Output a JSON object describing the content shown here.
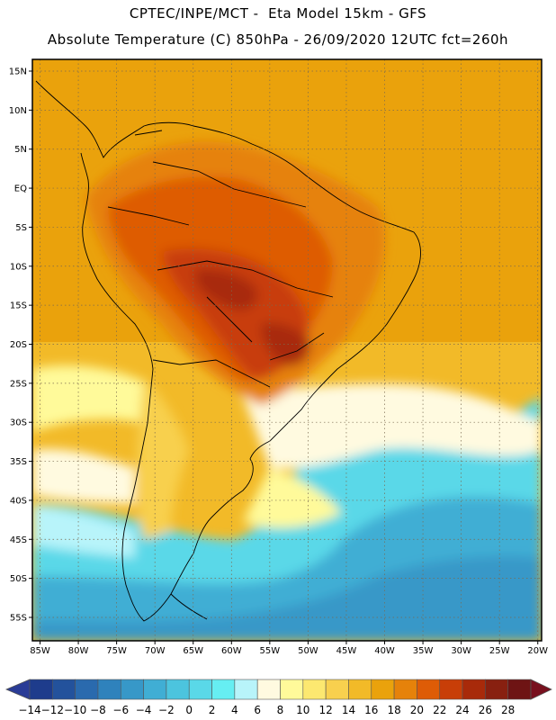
{
  "title": {
    "line1": "CPTEC/INPE/MCT -  Eta Model 15km - GFS",
    "line2": "Absolute Temperature (C) 850hPa - 26/09/2020 12UTC fct=260h"
  },
  "map": {
    "lat_labels": [
      "15N",
      "10N",
      "5N",
      "EQ",
      "5S",
      "10S",
      "15S",
      "20S",
      "25S",
      "30S",
      "35S",
      "40S",
      "45S",
      "50S",
      "55S"
    ],
    "lon_labels": [
      "85W",
      "80W",
      "75W",
      "70W",
      "65W",
      "60W",
      "55W",
      "50W",
      "45W",
      "40W",
      "35W",
      "30W",
      "25W",
      "20W"
    ],
    "lat_values": [
      15,
      10,
      5,
      0,
      -5,
      -10,
      -15,
      -20,
      -25,
      -30,
      -35,
      -40,
      -45,
      -50,
      -55
    ],
    "lon_values": [
      -85,
      -80,
      -75,
      -70,
      -65,
      -60,
      -55,
      -50,
      -45,
      -40,
      -35,
      -30,
      -25,
      -20
    ],
    "lon_range": [
      -86,
      -19.5
    ],
    "lat_range": [
      -58,
      16.5
    ]
  },
  "colorbar": {
    "labels": [
      "-14",
      "-12",
      "-10",
      "-8",
      "-6",
      "-4",
      "-2",
      "0",
      "2",
      "4",
      "6",
      "8",
      "10",
      "12",
      "14",
      "16",
      "18",
      "20",
      "22",
      "24",
      "26",
      "28"
    ],
    "colors": [
      "#1e3c8c",
      "#23529c",
      "#2a6aae",
      "#2f82bc",
      "#3798c8",
      "#40aed4",
      "#4cc4de",
      "#5ad8e8",
      "#66eef2",
      "#b8f4fa",
      "#fffae0",
      "#fffa9a",
      "#fce870",
      "#f8d04e",
      "#f2ba28",
      "#eaa20c",
      "#e6820a",
      "#de5c06",
      "#c83e08",
      "#a82a0a",
      "#882010",
      "#6e1414"
    ],
    "under_color": "#2a3c96",
    "over_color": "#78101e"
  }
}
